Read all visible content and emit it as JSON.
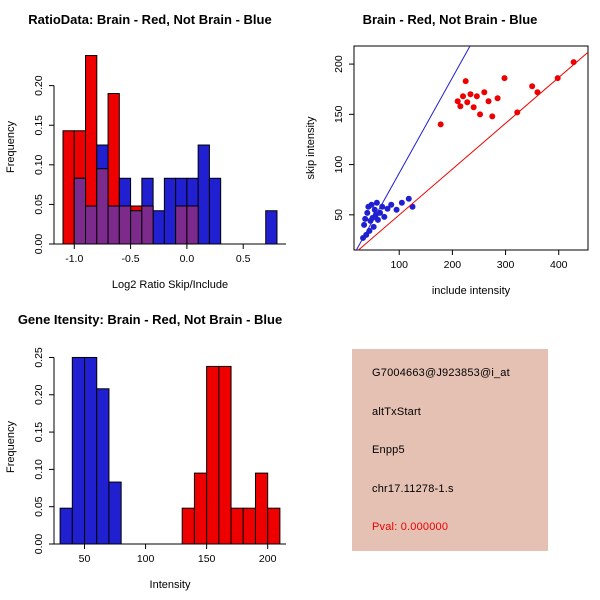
{
  "info_panel": {
    "bg_color": "#E5C1B3",
    "text_color": "#000000",
    "probe_id": "G7004663@J923853@i_at",
    "event_type": "altTxStart",
    "gene": "Enpp5",
    "location": "chr17.11278-1.s",
    "pval": "Pval: 0.000000",
    "pval_color": "#EE0000"
  },
  "chart_data": [
    {
      "type": "bar",
      "variant": "overlaid-histogram",
      "title": "RatioData: Brain - Red, Not Brain - Blue",
      "xlabel": "Log2 Ratio Skip/Include",
      "ylabel": "Frequency",
      "xlim": [
        -1.18,
        0.88
      ],
      "ylim": [
        0,
        0.245
      ],
      "xticks": [
        -1.0,
        -0.5,
        0.0,
        0.5
      ],
      "xtick_labels": [
        "-1.0",
        "-0.5",
        "0.0",
        "0.5"
      ],
      "yticks": [
        0,
        0.05,
        0.1,
        0.15,
        0.2
      ],
      "ytick_labels": [
        "0.00",
        "0.05",
        "0.10",
        "0.15",
        "0.20"
      ],
      "bin_start": -1.1,
      "bin_width": 0.1,
      "overlap_color": "#7C2A8C",
      "series": [
        {
          "name": "Brain",
          "color": "#EE0000",
          "values": [
            0.143,
            0.143,
            0.238,
            0.095,
            0.19,
            0.048,
            0.048,
            0.048,
            0,
            0,
            0.048,
            0.048,
            0,
            0,
            0,
            0,
            0,
            0,
            0
          ]
        },
        {
          "name": "Not Brain",
          "color": "#2020D0",
          "values": [
            0,
            0.083,
            0.048,
            0.125,
            0.048,
            0.083,
            0.042,
            0.083,
            0.042,
            0.083,
            0.083,
            0.083,
            0.125,
            0.083,
            0,
            0,
            0,
            0,
            0.042
          ]
        }
      ]
    },
    {
      "type": "scatter",
      "title": "Brain - Red, Not Brain - Blue",
      "xlabel": "include intensity",
      "ylabel": "skip intensity",
      "xlim": [
        15,
        455
      ],
      "ylim": [
        15,
        218
      ],
      "xticks": [
        100,
        200,
        300,
        400
      ],
      "xtick_labels": [
        "100",
        "200",
        "300",
        "400"
      ],
      "yticks": [
        50,
        100,
        150,
        200
      ],
      "ytick_labels": [
        "50",
        "100",
        "150",
        "200"
      ],
      "series": [
        {
          "name": "Not Brain",
          "color": "#2020D0",
          "points": [
            [
              32,
              27
            ],
            [
              34,
              40
            ],
            [
              36,
              46
            ],
            [
              38,
              30
            ],
            [
              40,
              52
            ],
            [
              42,
              58
            ],
            [
              44,
              34
            ],
            [
              46,
              44
            ],
            [
              48,
              60
            ],
            [
              50,
              47
            ],
            [
              52,
              38
            ],
            [
              54,
              55
            ],
            [
              56,
              50
            ],
            [
              58,
              62
            ],
            [
              60,
              45
            ],
            [
              64,
              52
            ],
            [
              68,
              58
            ],
            [
              72,
              48
            ],
            [
              78,
              56
            ],
            [
              85,
              60
            ],
            [
              95,
              55
            ],
            [
              105,
              62
            ],
            [
              118,
              66
            ],
            [
              125,
              58
            ]
          ],
          "fit_line": {
            "intercept": -3.5,
            "slope": 0.95
          }
        },
        {
          "name": "Brain",
          "color": "#EE0000",
          "points": [
            [
              178,
              140
            ],
            [
              210,
              163
            ],
            [
              215,
              158
            ],
            [
              220,
              168
            ],
            [
              225,
              183
            ],
            [
              228,
              162
            ],
            [
              234,
              170
            ],
            [
              240,
              157
            ],
            [
              246,
              168
            ],
            [
              252,
              150
            ],
            [
              260,
              172
            ],
            [
              268,
              163
            ],
            [
              275,
              148
            ],
            [
              285,
              166
            ],
            [
              298,
              186
            ],
            [
              322,
              152
            ],
            [
              350,
              178
            ],
            [
              360,
              172
            ],
            [
              398,
              186
            ],
            [
              428,
              202
            ]
          ],
          "fit_line": {
            "intercept": 4.3,
            "slope": 0.456
          }
        }
      ]
    },
    {
      "type": "bar",
      "variant": "overlaid-histogram",
      "title": "Gene Itensity: Brain - Red, Not Brain - Blue",
      "xlabel": "Intensity",
      "ylabel": "Frequency",
      "xlim": [
        25,
        215
      ],
      "ylim": [
        0,
        0.26
      ],
      "xticks": [
        50,
        100,
        150,
        200
      ],
      "xtick_labels": [
        "50",
        "100",
        "150",
        "200"
      ],
      "yticks": [
        0,
        0.05,
        0.1,
        0.15,
        0.2,
        0.25
      ],
      "ytick_labels": [
        "0.00",
        "0.05",
        "0.10",
        "0.15",
        "0.20",
        "0.25"
      ],
      "bin_start": 30,
      "bin_width": 10,
      "overlap_color": "#7C2A8C",
      "series": [
        {
          "name": "Not Brain",
          "color": "#2020D0",
          "values": [
            0.048,
            0.25,
            0.25,
            0.208,
            0.083,
            0,
            0,
            0,
            0,
            0,
            0,
            0,
            0,
            0,
            0,
            0,
            0,
            0
          ]
        },
        {
          "name": "Brain",
          "color": "#EE0000",
          "values": [
            0,
            0,
            0,
            0,
            0,
            0,
            0,
            0,
            0,
            0,
            0.048,
            0.095,
            0.238,
            0.238,
            0.048,
            0.048,
            0.095,
            0.048
          ]
        }
      ]
    }
  ]
}
